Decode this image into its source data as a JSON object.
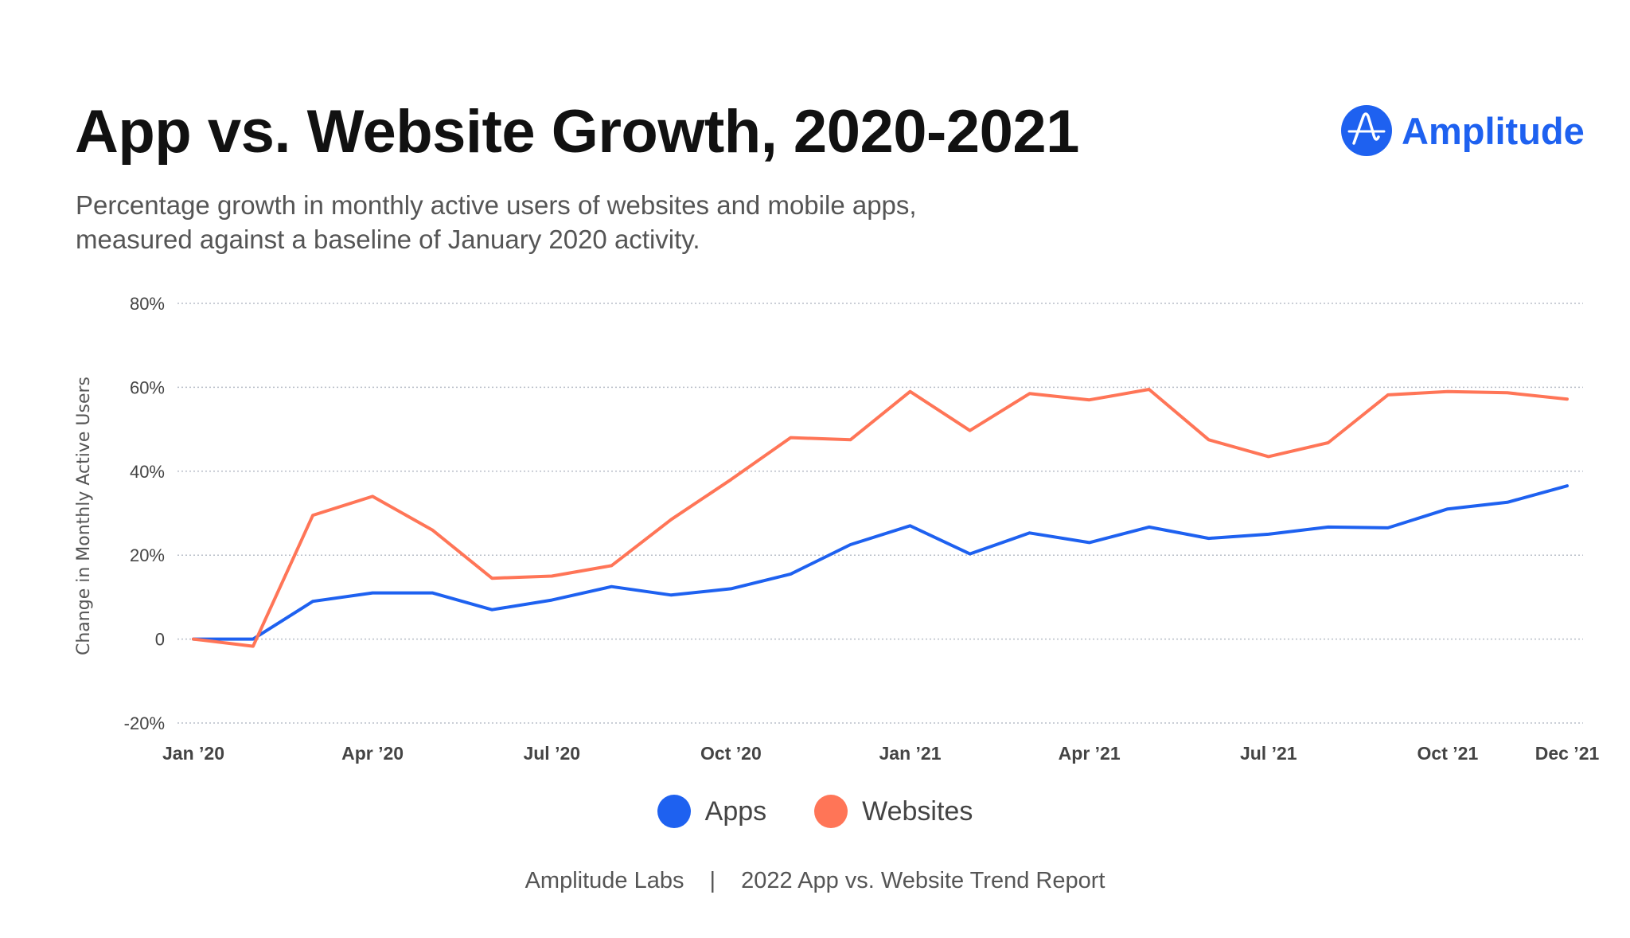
{
  "header": {
    "title": "App vs. Website Growth, 2020-2021",
    "subtitle_line1": "Percentage growth in monthly active users of websites and mobile apps,",
    "subtitle_line2": "measured against a baseline of January 2020 activity.",
    "logo_text": "Amplitude",
    "brand_color": "#1e61f0"
  },
  "footer": {
    "source": "Amplitude Labs",
    "separator": "|",
    "report": "2022 App vs. Website Trend Report"
  },
  "chart_data": {
    "type": "line",
    "title": "App vs. Website Growth, 2020-2021",
    "ylabel": "Change in Monthly Active Users",
    "xlabel": "",
    "ylim": [
      -20,
      80
    ],
    "yticks": [
      -20,
      0,
      20,
      40,
      60,
      80
    ],
    "ytick_labels": [
      "-20%",
      "0",
      "20%",
      "40%",
      "60%",
      "80%"
    ],
    "grid": true,
    "legend": "bottom",
    "x": [
      "Jan 2020",
      "Feb 2020",
      "Mar 2020",
      "Apr 2020",
      "May 2020",
      "Jun 2020",
      "Jul 2020",
      "Aug 2020",
      "Sep 2020",
      "Oct 2020",
      "Nov 2020",
      "Dec 2020",
      "Jan 2021",
      "Feb 2021",
      "Mar 2021",
      "Apr 2021",
      "May 2021",
      "Jun 2021",
      "Jul 2021",
      "Aug 2021",
      "Sep 2021",
      "Oct 2021",
      "Nov 2021",
      "Dec 2021"
    ],
    "xtick_labels": [
      {
        "index": 0,
        "label": "Jan ’20"
      },
      {
        "index": 3,
        "label": "Apr ’20"
      },
      {
        "index": 6,
        "label": "Jul ’20"
      },
      {
        "index": 9,
        "label": "Oct ’20"
      },
      {
        "index": 12,
        "label": "Jan ’21"
      },
      {
        "index": 15,
        "label": "Apr ’21"
      },
      {
        "index": 18,
        "label": "Jul ’21"
      },
      {
        "index": 21,
        "label": "Oct ’21"
      },
      {
        "index": 23,
        "label": "Dec ’21"
      }
    ],
    "series": [
      {
        "name": "Apps",
        "color": "#1e61f0",
        "values": [
          0,
          0,
          9,
          11,
          11,
          7,
          9.3,
          12.5,
          10.5,
          12,
          15.5,
          22.5,
          27,
          20.3,
          25.3,
          23,
          26.7,
          24,
          25,
          26.7,
          26.5,
          31,
          32.6,
          36.5
        ]
      },
      {
        "name": "Websites",
        "color": "#ff7557",
        "values": [
          0,
          -1.7,
          29.5,
          34,
          26,
          14.5,
          15,
          17.5,
          28.5,
          38,
          48,
          47.5,
          59,
          49.7,
          58.5,
          57,
          59.5,
          47.5,
          43.5,
          46.8,
          58.2,
          59,
          58.7,
          57.2
        ]
      }
    ]
  }
}
